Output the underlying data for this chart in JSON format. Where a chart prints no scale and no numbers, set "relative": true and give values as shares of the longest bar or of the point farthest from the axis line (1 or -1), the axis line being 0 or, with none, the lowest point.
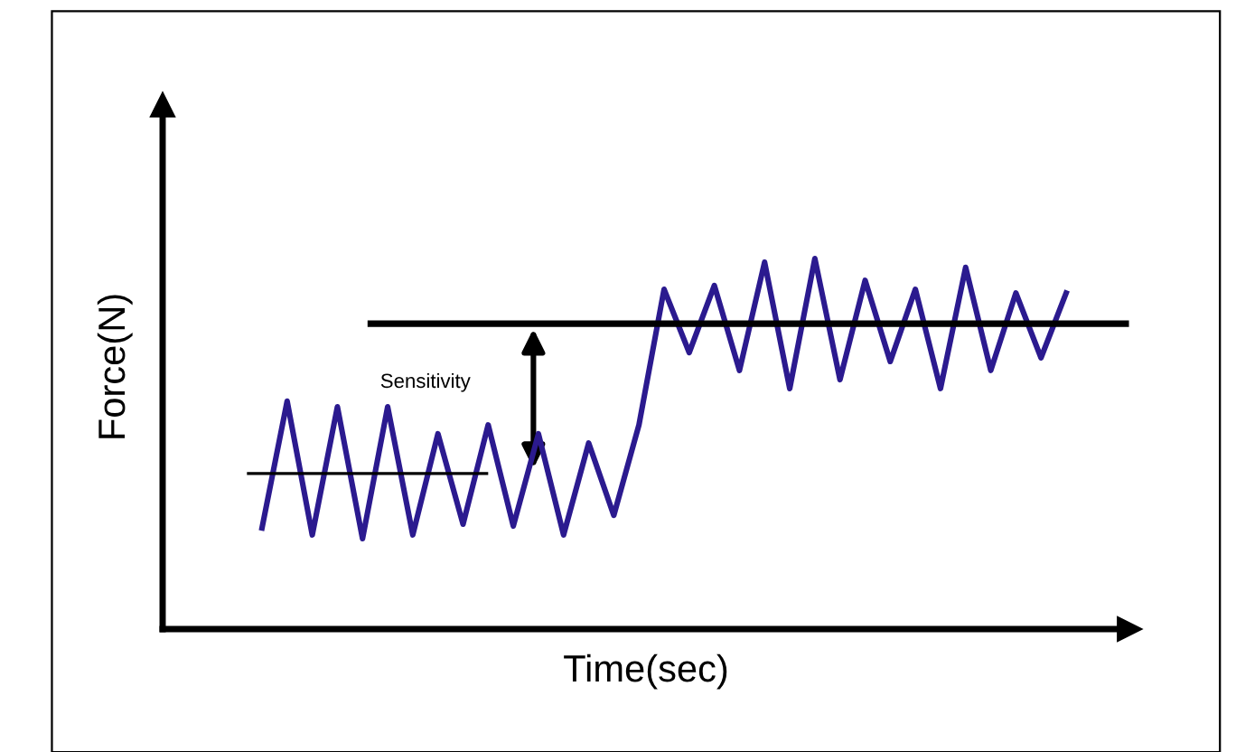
{
  "chart_data": {
    "type": "line",
    "relative": true,
    "xlabel": "Time(sec)",
    "ylabel": "Force(N)",
    "categories": [
      null,
      null,
      null,
      null,
      null,
      null,
      null,
      null,
      null,
      null,
      null,
      null,
      null,
      null,
      null,
      null,
      null,
      null,
      null,
      null,
      null,
      null,
      null,
      null,
      null,
      null,
      null,
      null,
      null,
      null,
      null,
      null,
      null
    ],
    "series": [
      {
        "color": "#2b1a8f",
        "values": [
          0.273,
          0.615,
          0.254,
          0.6,
          0.244,
          0.6,
          0.254,
          0.527,
          0.283,
          0.551,
          0.278,
          0.527,
          0.254,
          0.502,
          0.307,
          0.551,
          0.917,
          0.746,
          0.927,
          0.698,
          0.99,
          0.649,
          1.0,
          0.673,
          0.941,
          0.722,
          0.917,
          0.649,
          0.976,
          0.698,
          0.907,
          0.732,
          0.907
        ]
      }
    ],
    "ref_lines": [
      {
        "axis": "y",
        "value": 0.42,
        "color": "#000000"
      },
      {
        "axis": "y",
        "value": 0.824,
        "color": "#000000"
      }
    ],
    "annotations": [
      "Sensitivity"
    ],
    "legend": false,
    "marker": "none",
    "line_style": "solid"
  }
}
